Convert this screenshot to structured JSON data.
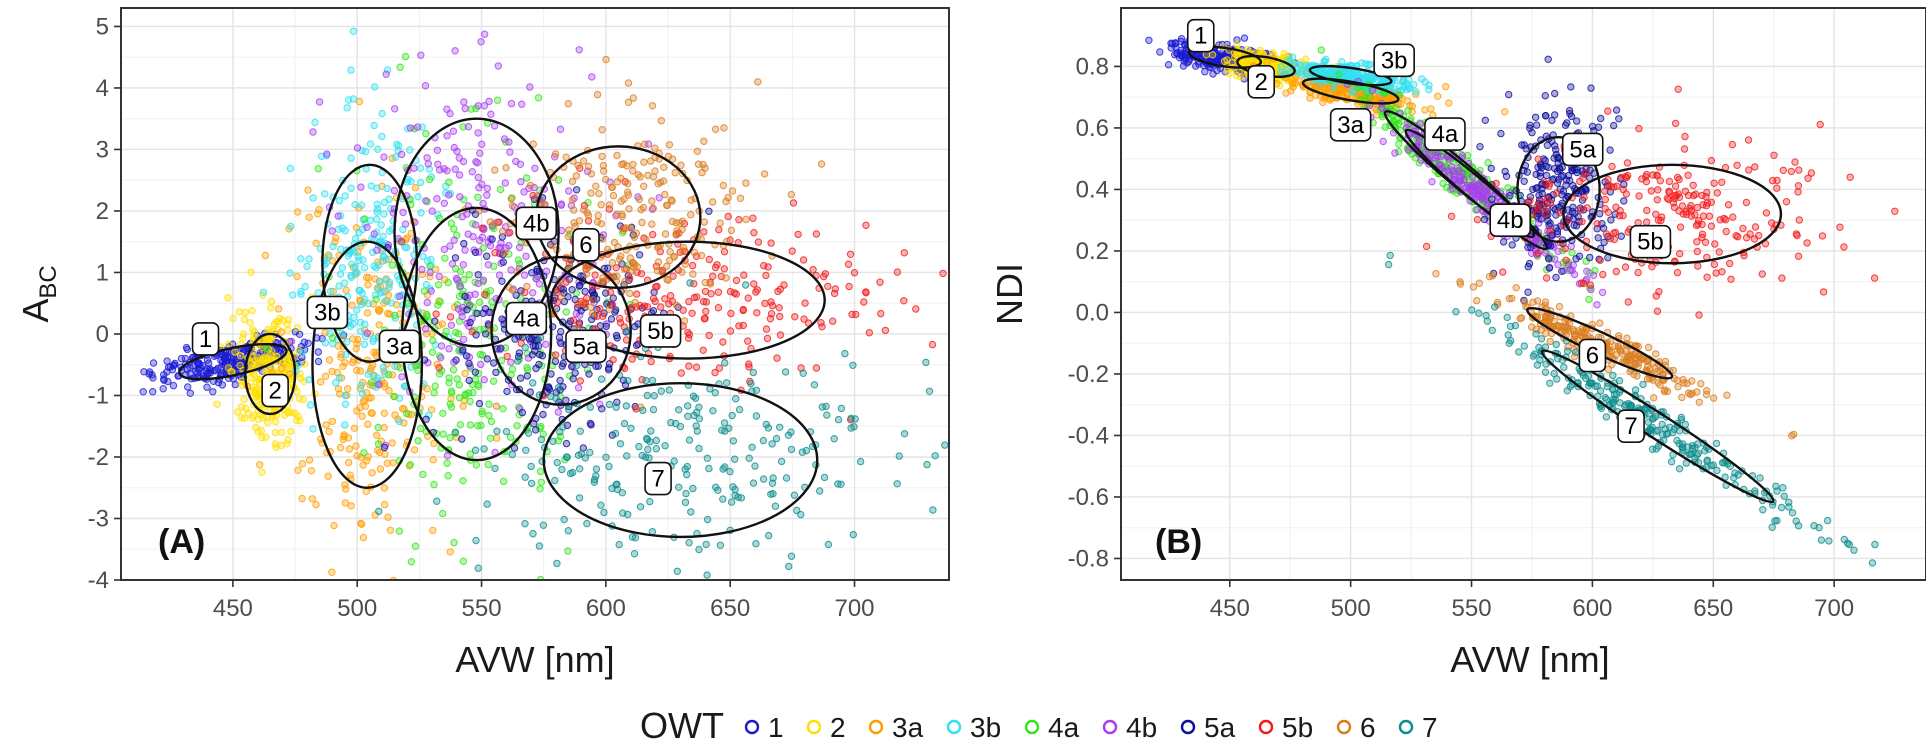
{
  "chart_data": [
    {
      "type": "scatter",
      "panel": "(A)",
      "xlabel": "AVW [nm]",
      "ylabel": "A",
      "ylabel_sub": "BC",
      "xlim": [
        405,
        738
      ],
      "ylim": [
        -4,
        5.3
      ],
      "x_ticks": [
        450,
        500,
        550,
        600,
        650,
        700
      ],
      "y_ticks": [
        -4,
        -3,
        -2,
        -1,
        0,
        1,
        2,
        3,
        4,
        5
      ],
      "grid": true,
      "clusters": [
        {
          "owt": "1",
          "label": "1",
          "center": [
            450,
            -0.45
          ],
          "radii": [
            25,
            0.45
          ],
          "rotation": 18,
          "label_pos": [
            439,
            -0.08
          ],
          "ellipse_center": [
            450,
            -0.45
          ],
          "ellipse_radii": [
            22,
            0.22
          ],
          "ellipse_rot": 12
        },
        {
          "owt": "2",
          "label": "2",
          "center": [
            465,
            -0.6
          ],
          "ellipse_center": [
            465,
            -0.65
          ],
          "ellipse_radii": [
            10,
            0.65
          ],
          "ellipse_rot": 0,
          "label_pos": [
            467,
            -0.92
          ]
        },
        {
          "owt": "3a",
          "label": "3a",
          "ellipse_center": [
            504,
            -0.5
          ],
          "ellipse_radii": [
            22,
            2.0
          ],
          "ellipse_rot": 0,
          "label_pos": [
            517,
            -0.2
          ]
        },
        {
          "owt": "3b",
          "label": "3b",
          "ellipse_center": [
            505,
            1.15
          ],
          "ellipse_radii": [
            19,
            1.6
          ],
          "ellipse_rot": 0,
          "label_pos": [
            488,
            0.35
          ]
        },
        {
          "owt": "4a",
          "label": "4a",
          "ellipse_center": [
            548,
            0.0
          ],
          "ellipse_radii": [
            30,
            2.05
          ],
          "ellipse_rot": 0,
          "label_pos": [
            568,
            0.25
          ]
        },
        {
          "owt": "4b",
          "label": "4b",
          "ellipse_center": [
            548,
            1.65
          ],
          "ellipse_radii": [
            33,
            1.85
          ],
          "ellipse_rot": 0,
          "label_pos": [
            572,
            1.8
          ]
        },
        {
          "owt": "5a",
          "label": "5a",
          "ellipse_center": [
            582,
            0.05
          ],
          "ellipse_radii": [
            28,
            1.2
          ],
          "ellipse_rot": 0,
          "label_pos": [
            592,
            -0.2
          ]
        },
        {
          "owt": "5b",
          "label": "5b",
          "ellipse_center": [
            633,
            0.55
          ],
          "ellipse_radii": [
            55,
            0.95
          ],
          "ellipse_rot": 0,
          "label_pos": [
            622,
            0.05
          ]
        },
        {
          "owt": "6",
          "label": "6",
          "ellipse_center": [
            605,
            1.9
          ],
          "ellipse_radii": [
            33,
            1.15
          ],
          "ellipse_rot": 0,
          "label_pos": [
            592,
            1.45
          ]
        },
        {
          "owt": "7",
          "label": "7",
          "ellipse_center": [
            630,
            -2.05
          ],
          "ellipse_radii": [
            55,
            1.25
          ],
          "ellipse_rot": 0,
          "label_pos": [
            621,
            -2.35
          ]
        }
      ]
    },
    {
      "type": "scatter",
      "panel": "(B)",
      "xlabel": "AVW [nm]",
      "ylabel": "NDI",
      "xlim": [
        405,
        738
      ],
      "ylim": [
        -0.87,
        0.99
      ],
      "x_ticks": [
        450,
        500,
        550,
        600,
        650,
        700
      ],
      "y_ticks": [
        -0.8,
        -0.6,
        -0.4,
        -0.2,
        0.0,
        0.2,
        0.4,
        0.6,
        0.8
      ],
      "y_tick_labels": [
        "-0.8",
        "-0.6",
        "-0.4",
        "-0.2",
        "0.0",
        "0.2",
        "0.4",
        "0.6",
        "0.8"
      ],
      "grid": true,
      "clusters": [
        {
          "owt": "1",
          "label": "1",
          "ellipse_center": [
            448,
            0.83
          ],
          "ellipse_radii": [
            15,
            0.03
          ],
          "ellipse_rot": -8,
          "label_pos": [
            438,
            0.9
          ]
        },
        {
          "owt": "2",
          "label": "2",
          "ellipse_center": [
            465,
            0.8
          ],
          "ellipse_radii": [
            12,
            0.03
          ],
          "ellipse_rot": -10,
          "label_pos": [
            463,
            0.75
          ]
        },
        {
          "owt": "3a",
          "label": "3a",
          "ellipse_center": [
            500,
            0.72
          ],
          "ellipse_radii": [
            20,
            0.03
          ],
          "ellipse_rot": -10,
          "label_pos": [
            500,
            0.61
          ]
        },
        {
          "owt": "3b",
          "label": "3b",
          "ellipse_center": [
            500,
            0.77
          ],
          "ellipse_radii": [
            17,
            0.025
          ],
          "ellipse_rot": -8,
          "label_pos": [
            518,
            0.82
          ]
        },
        {
          "owt": "4a",
          "label": "4a",
          "ellipse_center": [
            545,
            0.45
          ],
          "ellipse_radii": [
            40,
            0.04
          ],
          "ellipse_rot": -40,
          "label_pos": [
            539,
            0.58
          ]
        },
        {
          "owt": "4b",
          "label": "4b",
          "ellipse_center": [
            552,
            0.4
          ],
          "ellipse_radii": [
            38,
            0.035
          ],
          "ellipse_rot": -40,
          "label_pos": [
            566,
            0.3
          ]
        },
        {
          "owt": "5a",
          "label": "5a",
          "ellipse_center": [
            586,
            0.4
          ],
          "ellipse_radii": [
            17,
            0.17
          ],
          "ellipse_rot": 0,
          "label_pos": [
            596,
            0.53
          ]
        },
        {
          "owt": "5b",
          "label": "5b",
          "ellipse_center": [
            633,
            0.32
          ],
          "ellipse_radii": [
            45,
            0.16
          ],
          "ellipse_rot": 0,
          "label_pos": [
            624,
            0.23
          ]
        },
        {
          "owt": "6",
          "label": "6",
          "ellipse_center": [
            603,
            -0.1
          ],
          "ellipse_radii": [
            33,
            0.035
          ],
          "ellipse_rot": -25,
          "label_pos": [
            600,
            -0.14
          ]
        },
        {
          "owt": "7",
          "label": "7",
          "ellipse_center": [
            627,
            -0.37
          ],
          "ellipse_radii": [
            57,
            0.04
          ],
          "ellipse_rot": -33,
          "label_pos": [
            616,
            -0.37
          ]
        }
      ]
    }
  ],
  "legend": {
    "title": "OWT",
    "items": [
      {
        "label": "1",
        "color": "#1a1ad4"
      },
      {
        "label": "2",
        "color": "#ffe000"
      },
      {
        "label": "3a",
        "color": "#ff9d00"
      },
      {
        "label": "3b",
        "color": "#33e0f0"
      },
      {
        "label": "4a",
        "color": "#33e61a"
      },
      {
        "label": "4b",
        "color": "#a83ef0"
      },
      {
        "label": "5a",
        "color": "#0d0d99"
      },
      {
        "label": "5b",
        "color": "#f21a1a"
      },
      {
        "label": "6",
        "color": "#d97d1f"
      },
      {
        "label": "7",
        "color": "#0d8c8c"
      }
    ]
  }
}
